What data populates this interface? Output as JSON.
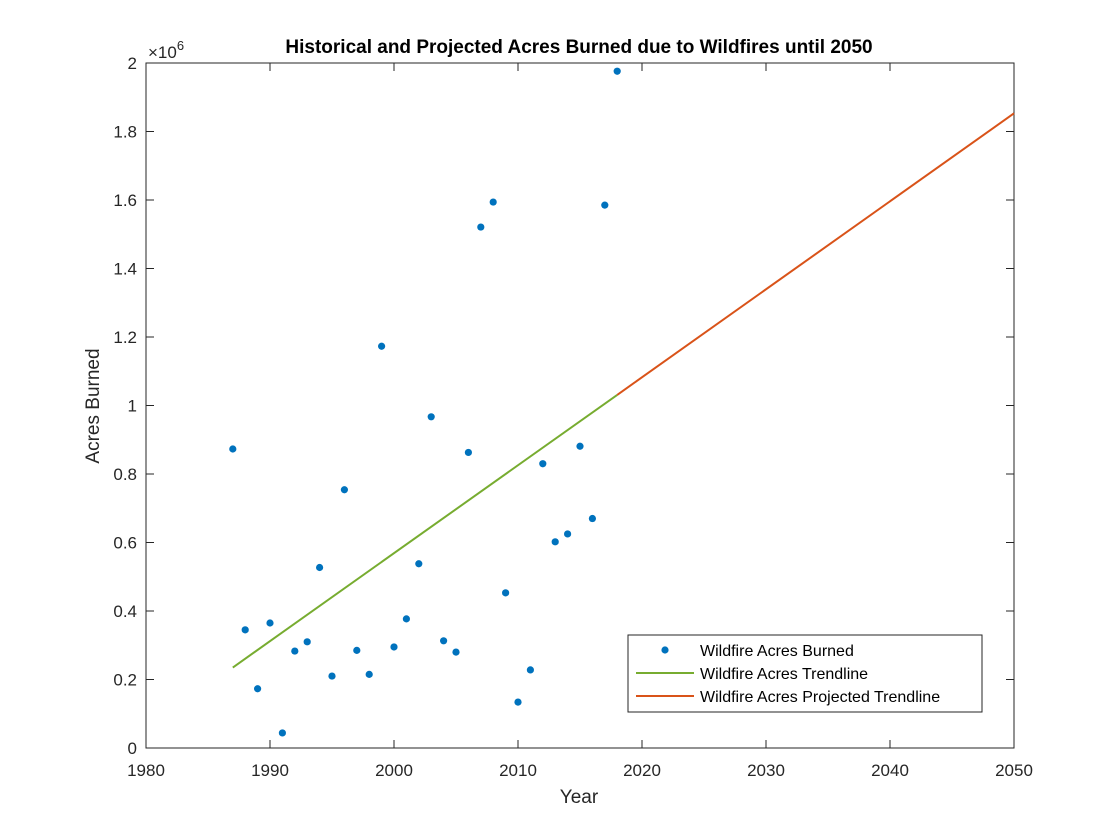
{
  "chart_data": {
    "type": "scatter",
    "title": "Historical and Projected Acres Burned due to Wildfires until 2050",
    "xlabel": "Year",
    "ylabel": "Acres Burned",
    "y_exponent_prefix": "×10",
    "y_exponent_power": "6",
    "xlim": [
      1980,
      2050
    ],
    "ylim": [
      0,
      2
    ],
    "y_scale_factor": 1000000,
    "x_ticks": [
      1980,
      1990,
      2000,
      2010,
      2020,
      2030,
      2040,
      2050
    ],
    "x_tick_labels": [
      "1980",
      "1990",
      "2000",
      "2010",
      "2020",
      "2030",
      "2040",
      "2050"
    ],
    "y_ticks": [
      0,
      0.2,
      0.4,
      0.6,
      0.8,
      1,
      1.2,
      1.4,
      1.6,
      1.8,
      2
    ],
    "y_tick_labels": [
      "0",
      "0.2",
      "0.4",
      "0.6",
      "0.8",
      "1",
      "1.2",
      "1.4",
      "1.6",
      "1.8",
      "2"
    ],
    "grid": false,
    "legend_position": "bottom-right",
    "series": [
      {
        "name": "Wildfire Acres Burned",
        "kind": "points",
        "color": "#0072BD",
        "x": [
          1987,
          1988,
          1989,
          1990,
          1991,
          1992,
          1993,
          1994,
          1995,
          1996,
          1997,
          1998,
          1999,
          2000,
          2001,
          2002,
          2003,
          2004,
          2005,
          2006,
          2007,
          2008,
          2009,
          2010,
          2011,
          2012,
          2013,
          2014,
          2015,
          2016,
          2017,
          2018
        ],
        "y": [
          0.873,
          0.345,
          0.173,
          0.365,
          0.044,
          0.283,
          0.31,
          0.527,
          0.21,
          0.754,
          0.285,
          0.215,
          1.173,
          0.295,
          0.377,
          0.538,
          0.967,
          0.313,
          0.28,
          0.863,
          1.521,
          1.594,
          0.453,
          0.134,
          0.228,
          0.83,
          0.602,
          0.625,
          0.881,
          0.67,
          1.585,
          1.976
        ]
      },
      {
        "name": "Wildfire Acres Trendline",
        "kind": "line",
        "color": "#77AC30",
        "x": [
          1987,
          2018
        ],
        "y": [
          0.235,
          1.031
        ]
      },
      {
        "name": "Wildfire Acres Projected Trendline",
        "kind": "line",
        "color": "#D95319",
        "x": [
          2018,
          2050
        ],
        "y": [
          1.031,
          1.853
        ]
      }
    ]
  }
}
